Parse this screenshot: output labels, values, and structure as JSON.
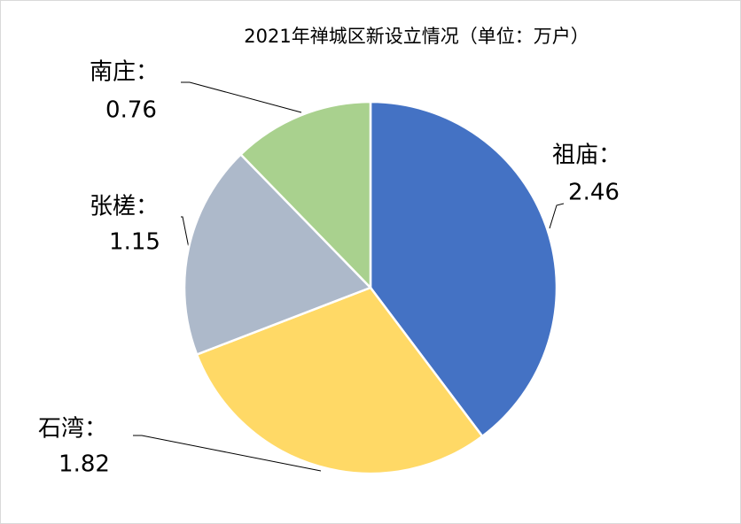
{
  "chart_data": {
    "type": "pie",
    "title": "2021年禅城区新设立情况（单位：万户）",
    "categories": [
      "祖庙：",
      "石湾：",
      "张槎：",
      "南庄："
    ],
    "values": [
      2.46,
      1.82,
      1.15,
      0.76
    ],
    "colors": [
      "#4472c4",
      "#ffd966",
      "#adb9ca",
      "#a9d18e"
    ]
  }
}
